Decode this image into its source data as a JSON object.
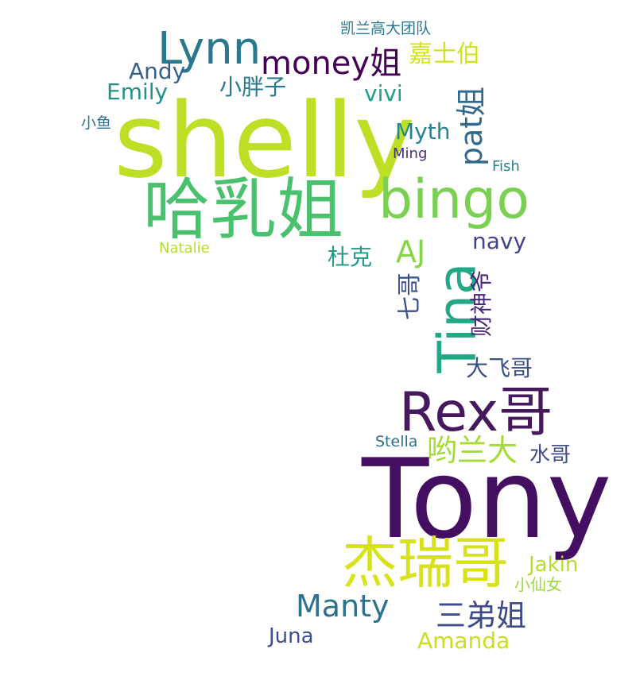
{
  "words": [
    {
      "text": "shelly",
      "color": "#bddf26"
    },
    {
      "text": "Tony",
      "color": "#440f60"
    },
    {
      "text": "哈乳姐",
      "color": "#4ac16d"
    },
    {
      "text": "bingo",
      "color": "#7ad151"
    },
    {
      "text": "Rex哥",
      "color": "#46185c"
    },
    {
      "text": "杰瑞哥",
      "color": "#d8e219"
    },
    {
      "text": "Tina",
      "color": "#22a884"
    },
    {
      "text": "Lynn",
      "color": "#2a788e"
    },
    {
      "text": "money姐",
      "color": "#440154"
    },
    {
      "text": "pat姐",
      "color": "#31688e"
    },
    {
      "text": "Manty",
      "color": "#2c728e"
    },
    {
      "text": "三弟姐",
      "color": "#3e4a89"
    },
    {
      "text": "哟兰大",
      "color": "#a5db36"
    },
    {
      "text": "嘉士伯",
      "color": "#d2e21b"
    },
    {
      "text": "AJ",
      "color": "#86d549"
    },
    {
      "text": "Emily",
      "color": "#21918c"
    },
    {
      "text": "Andy",
      "color": "#355f8d"
    },
    {
      "text": "小胖子",
      "color": "#2a788e"
    },
    {
      "text": "vivi",
      "color": "#1f9e89"
    },
    {
      "text": "Myth",
      "color": "#25858e"
    },
    {
      "text": "杜克",
      "color": "#1e9c89"
    },
    {
      "text": "navy",
      "color": "#414487"
    },
    {
      "text": "七哥",
      "color": "#3b528b"
    },
    {
      "text": "财神爷",
      "color": "#482878"
    },
    {
      "text": "大飞哥",
      "color": "#3d4e8a"
    },
    {
      "text": "水哥",
      "color": "#3e4c8a"
    },
    {
      "text": "Jakin",
      "color": "#b5de2b"
    },
    {
      "text": "Amanda",
      "color": "#c8e020"
    },
    {
      "text": "Juna",
      "color": "#3d4d8a"
    },
    {
      "text": "小仙女",
      "color": "#9bd93c"
    },
    {
      "text": "Stella",
      "color": "#2d708e"
    },
    {
      "text": "凯兰高大团队",
      "color": "#2a788e"
    },
    {
      "text": "小鱼",
      "color": "#2c728e"
    },
    {
      "text": "Ming",
      "color": "#472d7b"
    },
    {
      "text": "Fish",
      "color": "#26828e"
    },
    {
      "text": "Natalie",
      "color": "#b4de2c"
    }
  ]
}
